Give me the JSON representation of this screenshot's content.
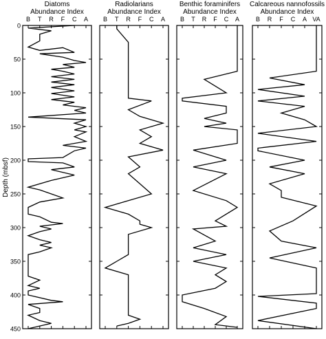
{
  "chart_data": [
    {
      "type": "line",
      "title": "Diatoms",
      "subtitle": "Abundance Index",
      "xlabel": "Abundance Index",
      "ylabel": "Depth (mbsf)",
      "x_categories": [
        "B",
        "T",
        "R",
        "F",
        "C",
        "A"
      ],
      "ylim": [
        0,
        450
      ],
      "y_ticks": [
        0,
        50,
        100,
        150,
        200,
        250,
        300,
        350,
        400,
        450
      ],
      "y_inverted": true,
      "grid": false,
      "points": [
        {
          "depth": 0,
          "abundance": "C"
        },
        {
          "depth": 4,
          "abundance": "B"
        },
        {
          "depth": 8,
          "abundance": "R"
        },
        {
          "depth": 13,
          "abundance": "T"
        },
        {
          "depth": 23,
          "abundance": "T"
        },
        {
          "depth": 32,
          "abundance": "B"
        },
        {
          "depth": 37,
          "abundance": "T"
        },
        {
          "depth": 33,
          "abundance": "F"
        },
        {
          "depth": 40,
          "abundance": "C"
        },
        {
          "depth": 42,
          "abundance": "T"
        },
        {
          "depth": 47,
          "abundance": "F"
        },
        {
          "depth": 52,
          "abundance": "C"
        },
        {
          "depth": 55,
          "abundance": "A"
        },
        {
          "depth": 58,
          "abundance": "F"
        },
        {
          "depth": 62,
          "abundance": "C"
        },
        {
          "depth": 65,
          "abundance": "R"
        },
        {
          "depth": 68,
          "abundance": "F"
        },
        {
          "depth": 72,
          "abundance": "C"
        },
        {
          "depth": 76,
          "abundance": "R"
        },
        {
          "depth": 80,
          "abundance": "C"
        },
        {
          "depth": 84,
          "abundance": "R"
        },
        {
          "depth": 88,
          "abundance": "C"
        },
        {
          "depth": 92,
          "abundance": "R"
        },
        {
          "depth": 97,
          "abundance": "C"
        },
        {
          "depth": 101,
          "abundance": "R"
        },
        {
          "depth": 106,
          "abundance": "C"
        },
        {
          "depth": 110,
          "abundance": "R"
        },
        {
          "depth": 114,
          "abundance": "C"
        },
        {
          "depth": 118,
          "abundance": "F"
        },
        {
          "depth": 122,
          "abundance": "A"
        },
        {
          "depth": 126,
          "abundance": "C"
        },
        {
          "depth": 130,
          "abundance": "A"
        },
        {
          "depth": 136,
          "abundance": "B"
        },
        {
          "depth": 140,
          "abundance": "A"
        },
        {
          "depth": 145,
          "abundance": "C"
        },
        {
          "depth": 150,
          "abundance": "A"
        },
        {
          "depth": 155,
          "abundance": "C"
        },
        {
          "depth": 158,
          "abundance": "A"
        },
        {
          "depth": 165,
          "abundance": "C"
        },
        {
          "depth": 172,
          "abundance": "A"
        },
        {
          "depth": 178,
          "abundance": "F"
        },
        {
          "depth": 182,
          "abundance": "A"
        },
        {
          "depth": 186,
          "abundance": "C"
        },
        {
          "depth": 196,
          "abundance": "F"
        },
        {
          "depth": 198,
          "abundance": "B"
        },
        {
          "depth": 202,
          "abundance": "B"
        },
        {
          "depth": 204,
          "abundance": "F"
        },
        {
          "depth": 210,
          "abundance": "C"
        },
        {
          "depth": 214,
          "abundance": "R"
        },
        {
          "depth": 222,
          "abundance": "C"
        },
        {
          "depth": 230,
          "abundance": "R"
        },
        {
          "depth": 240,
          "abundance": "B"
        },
        {
          "depth": 244,
          "abundance": "T"
        },
        {
          "depth": 250,
          "abundance": "R"
        },
        {
          "depth": 256,
          "abundance": "F"
        },
        {
          "depth": 262,
          "abundance": "T"
        },
        {
          "depth": 270,
          "abundance": "B"
        },
        {
          "depth": 280,
          "abundance": "B"
        },
        {
          "depth": 284,
          "abundance": "T"
        },
        {
          "depth": 292,
          "abundance": "R"
        },
        {
          "depth": 294,
          "abundance": "F"
        },
        {
          "depth": 298,
          "abundance": "T"
        },
        {
          "depth": 302,
          "abundance": "R"
        },
        {
          "depth": 306,
          "abundance": "T"
        },
        {
          "depth": 312,
          "abundance": "B"
        },
        {
          "depth": 318,
          "abundance": "T"
        },
        {
          "depth": 322,
          "abundance": "R"
        },
        {
          "depth": 326,
          "abundance": "T"
        },
        {
          "depth": 330,
          "abundance": "R"
        },
        {
          "depth": 336,
          "abundance": "T"
        },
        {
          "depth": 340,
          "abundance": "B"
        },
        {
          "depth": 372,
          "abundance": "B"
        },
        {
          "depth": 378,
          "abundance": "T"
        },
        {
          "depth": 386,
          "abundance": "B"
        },
        {
          "depth": 390,
          "abundance": "T"
        },
        {
          "depth": 394,
          "abundance": "B"
        },
        {
          "depth": 400,
          "abundance": "B"
        },
        {
          "depth": 408,
          "abundance": "R"
        },
        {
          "depth": 410,
          "abundance": "F"
        },
        {
          "depth": 414,
          "abundance": "B"
        },
        {
          "depth": 420,
          "abundance": "T"
        },
        {
          "depth": 426,
          "abundance": "T"
        },
        {
          "depth": 430,
          "abundance": "B"
        },
        {
          "depth": 438,
          "abundance": "T"
        },
        {
          "depth": 442,
          "abundance": "R"
        },
        {
          "depth": 450,
          "abundance": "B"
        }
      ]
    },
    {
      "type": "line",
      "title": "Radiolarians",
      "subtitle": "Abundance Index",
      "xlabel": "Abundance Index",
      "x_categories": [
        "B",
        "T",
        "R",
        "F",
        "C",
        "A"
      ],
      "ylim": [
        0,
        450
      ],
      "y_inverted": true,
      "grid": false,
      "points": [
        {
          "depth": 0,
          "abundance": "T"
        },
        {
          "depth": 5,
          "abundance": "T"
        },
        {
          "depth": 25,
          "abundance": "R"
        },
        {
          "depth": 108,
          "abundance": "R"
        },
        {
          "depth": 112,
          "abundance": "C"
        },
        {
          "depth": 125,
          "abundance": "R"
        },
        {
          "depth": 135,
          "abundance": "F"
        },
        {
          "depth": 145,
          "abundance": "A"
        },
        {
          "depth": 155,
          "abundance": "F"
        },
        {
          "depth": 165,
          "abundance": "C"
        },
        {
          "depth": 175,
          "abundance": "F"
        },
        {
          "depth": 185,
          "abundance": "A"
        },
        {
          "depth": 195,
          "abundance": "R"
        },
        {
          "depth": 210,
          "abundance": "F"
        },
        {
          "depth": 220,
          "abundance": "R"
        },
        {
          "depth": 235,
          "abundance": "F"
        },
        {
          "depth": 250,
          "abundance": "C"
        },
        {
          "depth": 260,
          "abundance": "R"
        },
        {
          "depth": 270,
          "abundance": "B"
        },
        {
          "depth": 280,
          "abundance": "R"
        },
        {
          "depth": 290,
          "abundance": "F"
        },
        {
          "depth": 295,
          "abundance": "F"
        },
        {
          "depth": 300,
          "abundance": "C"
        },
        {
          "depth": 310,
          "abundance": "R"
        },
        {
          "depth": 340,
          "abundance": "R"
        },
        {
          "depth": 350,
          "abundance": "T"
        },
        {
          "depth": 360,
          "abundance": "B"
        },
        {
          "depth": 370,
          "abundance": "R"
        },
        {
          "depth": 430,
          "abundance": "R"
        },
        {
          "depth": 436,
          "abundance": "F"
        },
        {
          "depth": 442,
          "abundance": "R"
        },
        {
          "depth": 446,
          "abundance": "T"
        }
      ]
    },
    {
      "type": "line",
      "title": "Benthic foraminifers",
      "subtitle": "Abundance Index",
      "xlabel": "Abundance Index",
      "x_categories": [
        "B",
        "T",
        "R",
        "F",
        "C",
        "A"
      ],
      "ylim": [
        0,
        450
      ],
      "y_inverted": true,
      "grid": false,
      "points": [
        {
          "depth": 0,
          "abundance": "A"
        },
        {
          "depth": 68,
          "abundance": "A"
        },
        {
          "depth": 80,
          "abundance": "R"
        },
        {
          "depth": 90,
          "abundance": "F"
        },
        {
          "depth": 100,
          "abundance": "C"
        },
        {
          "depth": 108,
          "abundance": "B"
        },
        {
          "depth": 112,
          "abundance": "B"
        },
        {
          "depth": 120,
          "abundance": "C"
        },
        {
          "depth": 130,
          "abundance": "C"
        },
        {
          "depth": 138,
          "abundance": "R"
        },
        {
          "depth": 145,
          "abundance": "C"
        },
        {
          "depth": 150,
          "abundance": "R"
        },
        {
          "depth": 155,
          "abundance": "A"
        },
        {
          "depth": 175,
          "abundance": "A"
        },
        {
          "depth": 185,
          "abundance": "T"
        },
        {
          "depth": 200,
          "abundance": "C"
        },
        {
          "depth": 210,
          "abundance": "T"
        },
        {
          "depth": 220,
          "abundance": "C"
        },
        {
          "depth": 245,
          "abundance": "T"
        },
        {
          "depth": 260,
          "abundance": "C"
        },
        {
          "depth": 270,
          "abundance": "A"
        },
        {
          "depth": 290,
          "abundance": "F"
        },
        {
          "depth": 298,
          "abundance": "C"
        },
        {
          "depth": 302,
          "abundance": "T"
        },
        {
          "depth": 320,
          "abundance": "F"
        },
        {
          "depth": 330,
          "abundance": "T"
        },
        {
          "depth": 340,
          "abundance": "C"
        },
        {
          "depth": 350,
          "abundance": "T"
        },
        {
          "depth": 360,
          "abundance": "C"
        },
        {
          "depth": 370,
          "abundance": "F"
        },
        {
          "depth": 380,
          "abundance": "C"
        },
        {
          "depth": 390,
          "abundance": "F"
        },
        {
          "depth": 400,
          "abundance": "B"
        },
        {
          "depth": 410,
          "abundance": "B"
        },
        {
          "depth": 420,
          "abundance": "R"
        },
        {
          "depth": 432,
          "abundance": "C"
        },
        {
          "depth": 444,
          "abundance": "F"
        },
        {
          "depth": 448,
          "abundance": "A"
        }
      ]
    },
    {
      "type": "line",
      "title": "Calcareous nannofossils",
      "subtitle": "Abundance Index",
      "xlabel": "Abundance Index",
      "x_categories": [
        "B",
        "R",
        "F",
        "C",
        "A",
        "VA"
      ],
      "ylim": [
        0,
        450
      ],
      "y_inverted": true,
      "grid": false,
      "points": [
        {
          "depth": 0,
          "abundance": "VA"
        },
        {
          "depth": 68,
          "abundance": "VA"
        },
        {
          "depth": 78,
          "abundance": "R"
        },
        {
          "depth": 88,
          "abundance": "A"
        },
        {
          "depth": 95,
          "abundance": "B"
        },
        {
          "depth": 105,
          "abundance": "A"
        },
        {
          "depth": 112,
          "abundance": "B"
        },
        {
          "depth": 120,
          "abundance": "A"
        },
        {
          "depth": 130,
          "abundance": "F"
        },
        {
          "depth": 140,
          "abundance": "A"
        },
        {
          "depth": 150,
          "abundance": "VA"
        },
        {
          "depth": 160,
          "abundance": "B"
        },
        {
          "depth": 172,
          "abundance": "VA"
        },
        {
          "depth": 182,
          "abundance": "B"
        },
        {
          "depth": 186,
          "abundance": "B"
        },
        {
          "depth": 200,
          "abundance": "A"
        },
        {
          "depth": 210,
          "abundance": "R"
        },
        {
          "depth": 220,
          "abundance": "A"
        },
        {
          "depth": 235,
          "abundance": "R"
        },
        {
          "depth": 245,
          "abundance": "F"
        },
        {
          "depth": 255,
          "abundance": "F"
        },
        {
          "depth": 268,
          "abundance": "VA"
        },
        {
          "depth": 290,
          "abundance": "C"
        },
        {
          "depth": 305,
          "abundance": "R"
        },
        {
          "depth": 320,
          "abundance": "F"
        },
        {
          "depth": 330,
          "abundance": "VA"
        },
        {
          "depth": 345,
          "abundance": "R"
        },
        {
          "depth": 360,
          "abundance": "VA"
        },
        {
          "depth": 398,
          "abundance": "VA"
        },
        {
          "depth": 402,
          "abundance": "B"
        },
        {
          "depth": 412,
          "abundance": "VA"
        },
        {
          "depth": 420,
          "abundance": "VA"
        },
        {
          "depth": 438,
          "abundance": "B"
        },
        {
          "depth": 450,
          "abundance": "VA"
        }
      ]
    }
  ]
}
